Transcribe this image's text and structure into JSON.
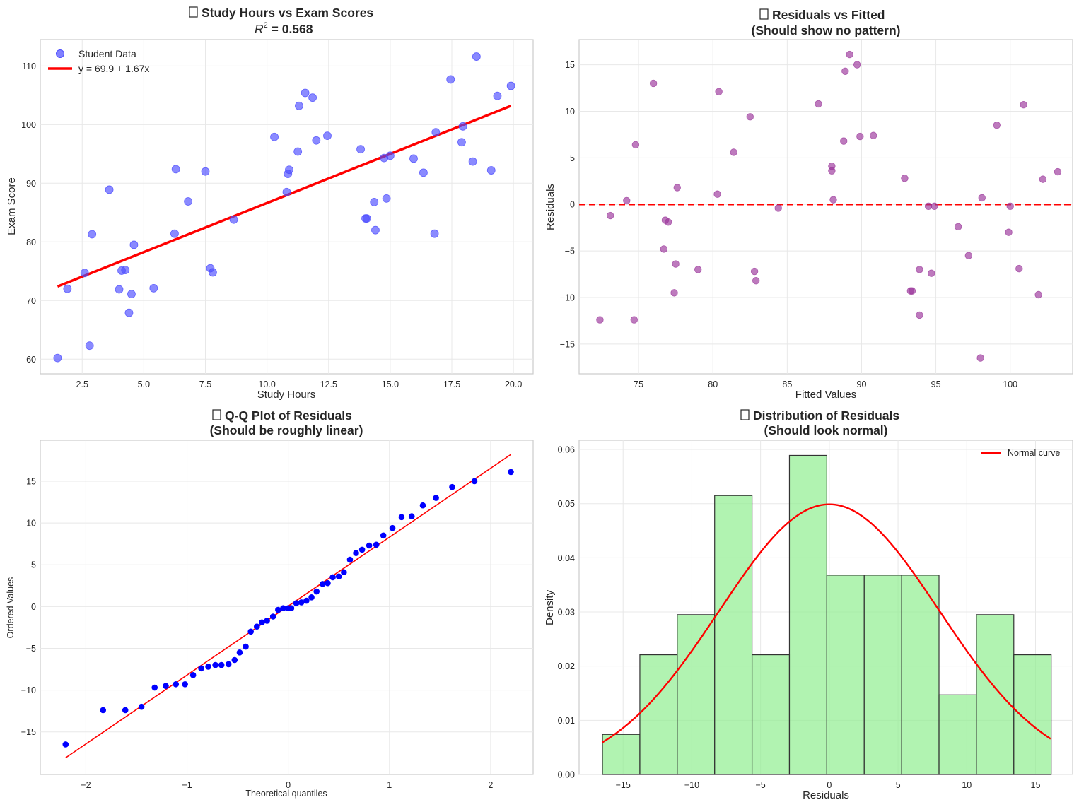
{
  "chart_data": [
    {
      "type": "scatter",
      "title": "Study Hours vs Exam Scores",
      "subtitle_label": "R",
      "subtitle_superscript": "2",
      "subtitle_value": " = 0.568",
      "xlabel": "Study Hours",
      "ylabel": "Exam Score",
      "xlim": [
        0.8,
        20.8
      ],
      "ylim": [
        57.5,
        114.5
      ],
      "xticks": [
        2.5,
        5.0,
        7.5,
        10.0,
        12.5,
        15.0,
        17.5,
        20.0
      ],
      "xtick_labels": [
        "2.5",
        "5.0",
        "7.5",
        "10.0",
        "12.5",
        "15.0",
        "17.5",
        "20.0"
      ],
      "yticks": [
        60,
        70,
        80,
        90,
        100,
        110
      ],
      "ytick_labels": [
        "60",
        "70",
        "80",
        "90",
        "100",
        "110"
      ],
      "grid": true,
      "legend_position": "upper-left",
      "colors": {
        "points": "#4c4cff",
        "fit": "#ff0000"
      },
      "series": [
        {
          "name": "Student Data",
          "x": [
            1.5,
            1.9,
            2.6,
            2.8,
            2.9,
            3.6,
            4.0,
            4.1,
            4.25,
            4.4,
            4.5,
            4.6,
            5.4,
            6.25,
            6.3,
            6.8,
            7.5,
            7.7,
            7.8,
            8.65,
            10.3,
            10.8,
            10.85,
            10.9,
            11.25,
            11.3,
            11.55,
            11.85,
            12.0,
            12.45,
            13.8,
            14.0,
            14.05,
            14.35,
            14.4,
            14.75,
            14.85,
            15.0,
            15.95,
            16.35,
            16.8,
            16.85,
            17.45,
            17.9,
            17.95,
            18.35,
            18.5,
            19.1,
            19.35,
            19.9
          ],
          "y": [
            60.2,
            72.0,
            74.7,
            62.3,
            81.3,
            88.9,
            71.9,
            75.1,
            75.2,
            67.9,
            71.1,
            79.5,
            72.1,
            81.4,
            92.4,
            86.9,
            92.0,
            75.5,
            74.8,
            83.8,
            97.9,
            88.5,
            91.6,
            92.3,
            95.4,
            103.2,
            105.4,
            104.6,
            97.3,
            98.1,
            95.8,
            84.0,
            84.0,
            86.8,
            82.0,
            94.3,
            87.4,
            94.7,
            94.2,
            91.8,
            81.4,
            98.7,
            107.7,
            97.0,
            99.7,
            93.7,
            111.6,
            92.2,
            104.9,
            106.6
          ]
        },
        {
          "name": "y = 69.9 + 1.67x",
          "x": [
            1.5,
            19.9
          ],
          "y": [
            72.4,
            103.2
          ]
        }
      ]
    },
    {
      "type": "scatter",
      "title": "Residuals vs Fitted",
      "subtitle": "(Should show no pattern)",
      "xlabel": "Fitted Values",
      "ylabel": "Residuals",
      "xlim": [
        71.0,
        104.2
      ],
      "ylim": [
        -18.2,
        17.7
      ],
      "xticks": [
        75,
        80,
        85,
        90,
        95,
        100
      ],
      "xtick_labels": [
        "75",
        "80",
        "85",
        "90",
        "95",
        "100"
      ],
      "yticks": [
        -15,
        -10,
        -5,
        0,
        5,
        10,
        15
      ],
      "ytick_labels": [
        "−15",
        "−10",
        "−5",
        "0",
        "5",
        "10",
        "15"
      ],
      "grid": true,
      "reference_line_y": 0,
      "colors": {
        "points": "#993399",
        "reference": "#ff0000"
      },
      "series": [
        {
          "x": [
            72.4,
            73.1,
            74.2,
            74.7,
            74.8,
            76.0,
            76.7,
            76.8,
            77.0,
            77.4,
            77.5,
            77.6,
            79.0,
            80.3,
            80.4,
            81.4,
            82.5,
            82.8,
            82.9,
            84.4,
            87.1,
            88.0,
            88.0,
            88.1,
            88.8,
            88.9,
            89.2,
            89.7,
            89.9,
            90.8,
            92.9,
            93.3,
            93.4,
            93.9,
            93.9,
            94.5,
            94.7,
            94.9,
            96.5,
            97.2,
            98.0,
            98.1,
            99.1,
            99.9,
            100.0,
            100.6,
            100.9,
            101.9,
            102.2,
            103.2
          ],
          "y": [
            -12.4,
            -1.2,
            0.4,
            -12.4,
            6.4,
            13.0,
            -4.8,
            -1.7,
            -1.9,
            -9.5,
            -6.4,
            1.8,
            -7.0,
            1.1,
            12.1,
            5.6,
            9.4,
            -7.2,
            -8.2,
            -0.4,
            10.8,
            3.6,
            4.1,
            0.5,
            6.8,
            14.3,
            16.1,
            15.0,
            7.3,
            7.4,
            2.8,
            -9.3,
            -9.3,
            -7.0,
            -11.9,
            -0.2,
            -7.4,
            -0.2,
            -2.4,
            -5.5,
            -16.5,
            0.7,
            8.5,
            -3.0,
            -0.2,
            -6.9,
            10.7,
            -9.7,
            2.7,
            3.5
          ]
        }
      ]
    },
    {
      "type": "scatter",
      "title": "Q-Q Plot of Residuals",
      "subtitle": "(Should be roughly linear)",
      "xlabel": "Theoretical quantiles",
      "ylabel": "Ordered Values",
      "xlim": [
        -2.45,
        2.42
      ],
      "ylim": [
        -20.1,
        19.9
      ],
      "xticks": [
        -2,
        -1,
        0,
        1,
        2
      ],
      "xtick_labels": [
        "−2",
        "−1",
        "0",
        "1",
        "2"
      ],
      "yticks": [
        -15,
        -10,
        -5,
        0,
        5,
        10,
        15
      ],
      "ytick_labels": [
        "−15",
        "−10",
        "−5",
        "0",
        "5",
        "10",
        "15"
      ],
      "grid": true,
      "colors": {
        "points": "#0000ff",
        "fit": "#ff0000"
      },
      "series": [
        {
          "x": [
            -2.2,
            -1.83,
            -1.61,
            -1.45,
            -1.32,
            -1.21,
            -1.11,
            -1.02,
            -0.94,
            -0.86,
            -0.79,
            -0.72,
            -0.66,
            -0.59,
            -0.53,
            -0.48,
            -0.42,
            -0.37,
            -0.31,
            -0.26,
            -0.21,
            -0.15,
            -0.1,
            -0.05,
            0.0,
            0.03,
            0.08,
            0.13,
            0.18,
            0.23,
            0.28,
            0.34,
            0.39,
            0.44,
            0.5,
            0.55,
            0.61,
            0.67,
            0.73,
            0.8,
            0.87,
            0.94,
            1.03,
            1.12,
            1.22,
            1.33,
            1.46,
            1.62,
            1.84,
            2.2
          ],
          "y": [
            -16.5,
            -12.4,
            -12.4,
            -12.0,
            -9.7,
            -9.5,
            -9.3,
            -9.3,
            -8.2,
            -7.4,
            -7.2,
            -7.0,
            -7.0,
            -6.9,
            -6.4,
            -5.5,
            -4.8,
            -3.0,
            -2.4,
            -1.9,
            -1.7,
            -1.2,
            -0.4,
            -0.2,
            -0.2,
            -0.2,
            0.4,
            0.5,
            0.7,
            1.1,
            1.8,
            2.7,
            2.8,
            3.5,
            3.6,
            4.1,
            5.6,
            6.4,
            6.8,
            7.3,
            7.4,
            8.5,
            9.4,
            10.7,
            10.8,
            12.1,
            13.0,
            14.3,
            15.0,
            16.1
          ]
        },
        {
          "x": [
            -2.2,
            2.2
          ],
          "y": [
            -18.1,
            18.2
          ]
        }
      ]
    },
    {
      "type": "bar",
      "title": "Distribution of Residuals",
      "subtitle": "(Should look normal)",
      "xlabel": "Residuals",
      "ylabel": "Density",
      "xlim": [
        -18.2,
        17.7
      ],
      "ylim": [
        0.0,
        0.0617
      ],
      "xticks": [
        -15,
        -10,
        -5,
        0,
        5,
        10,
        15
      ],
      "xtick_labels": [
        "−15",
        "−10",
        "−5",
        "0",
        "5",
        "10",
        "15"
      ],
      "yticks": [
        0.0,
        0.01,
        0.02,
        0.03,
        0.04,
        0.05,
        0.06
      ],
      "ytick_labels": [
        "0.00",
        "0.01",
        "0.02",
        "0.03",
        "0.04",
        "0.05",
        "0.06"
      ],
      "grid": true,
      "legend_position": "upper-right",
      "colors": {
        "bars": "#90ee90",
        "bar_edge": "#333333",
        "curve": "#ff0000"
      },
      "bin_edges": [
        -16.5,
        -13.78,
        -11.06,
        -8.34,
        -5.62,
        -2.9,
        -0.18,
        2.54,
        5.26,
        7.98,
        10.7,
        13.42,
        16.14
      ],
      "values": [
        0.0074,
        0.0221,
        0.0295,
        0.0515,
        0.0221,
        0.0589,
        0.0368,
        0.0368,
        0.0368,
        0.0147,
        0.0295,
        0.0221
      ],
      "series": [
        {
          "name": "Normal curve",
          "mean": 0.0,
          "std": 8.0,
          "x_range": [
            -16.5,
            16.1
          ]
        }
      ]
    }
  ]
}
